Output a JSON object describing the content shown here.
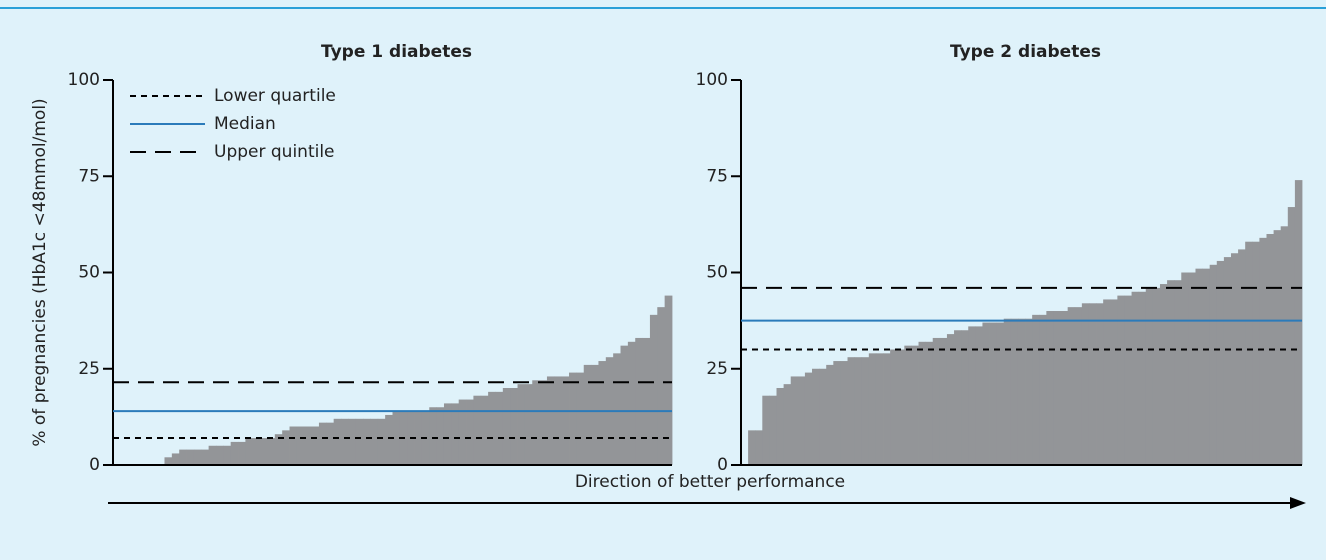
{
  "chart_data": [
    {
      "type": "bar",
      "title": "Type 1 diabetes",
      "ylabel": "% of pregnancies (HbA1c <48mmol/mol)",
      "color": "#939598",
      "ylim": [
        0,
        100
      ],
      "yticks": [
        0,
        25,
        50,
        75,
        100
      ],
      "legend": "upper left",
      "values": [
        0,
        0,
        0,
        0,
        0,
        0,
        0,
        2,
        3,
        4,
        4,
        4,
        4,
        5,
        5,
        5,
        6,
        6,
        7,
        7,
        7,
        7,
        8,
        9,
        10,
        10,
        10,
        10,
        11,
        11,
        12,
        12,
        12,
        12,
        12,
        12,
        12,
        13,
        14,
        14,
        14,
        14,
        14,
        15,
        15,
        16,
        16,
        17,
        17,
        18,
        18,
        19,
        19,
        20,
        20,
        21,
        21,
        22,
        22,
        23,
        23,
        23,
        24,
        24,
        26,
        26,
        27,
        28,
        29,
        31,
        32,
        33,
        33,
        39,
        41,
        44
      ],
      "lines": [
        {
          "name": "Lower quartile",
          "value": 7,
          "color": "#000000",
          "dash": "short"
        },
        {
          "name": "Median",
          "value": 14,
          "color": "#2b7bba",
          "dash": "solid"
        },
        {
          "name": "Upper quintile",
          "value": 21.5,
          "color": "#000000",
          "dash": "long"
        }
      ]
    },
    {
      "type": "bar",
      "title": "Type 2 diabetes",
      "color": "#939598",
      "ylim": [
        0,
        100
      ],
      "yticks": [
        0,
        25,
        50,
        75,
        100
      ],
      "values": [
        0,
        9,
        9,
        18,
        18,
        20,
        21,
        23,
        23,
        24,
        25,
        25,
        26,
        27,
        27,
        28,
        28,
        28,
        29,
        29,
        29,
        30,
        30,
        31,
        31,
        32,
        32,
        33,
        33,
        34,
        35,
        35,
        36,
        36,
        37,
        37,
        37,
        38,
        38,
        38,
        38,
        39,
        39,
        40,
        40,
        40,
        41,
        41,
        42,
        42,
        42,
        43,
        43,
        44,
        44,
        45,
        45,
        46,
        46,
        47,
        48,
        48,
        50,
        50,
        51,
        51,
        52,
        53,
        54,
        55,
        56,
        58,
        58,
        59,
        60,
        61,
        62,
        67,
        74
      ],
      "lines": [
        {
          "value": 30,
          "color": "#000000",
          "dash": "short"
        },
        {
          "value": 37.5,
          "color": "#2b7bba",
          "dash": "solid"
        },
        {
          "value": 46,
          "color": "#000000",
          "dash": "long"
        }
      ]
    }
  ],
  "annotation": "Direction of better performance"
}
